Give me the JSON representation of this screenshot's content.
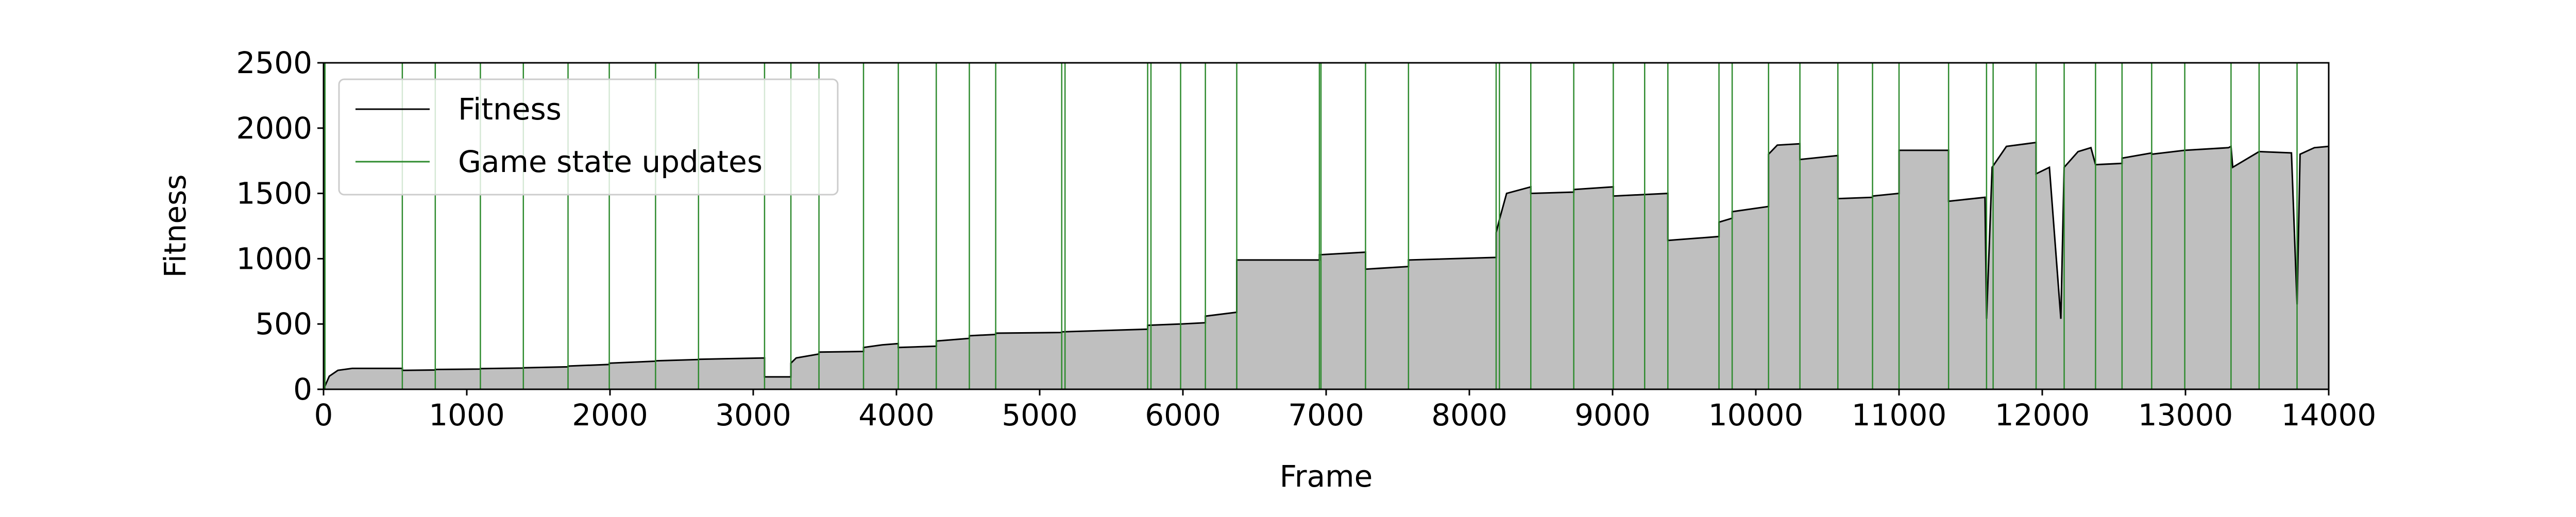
{
  "chart_data": {
    "type": "area",
    "xlabel": "Frame",
    "ylabel": "Fitness",
    "xlim": [
      0,
      14000
    ],
    "xticks": [
      0,
      1000,
      2000,
      3000,
      4000,
      5000,
      6000,
      7000,
      8000,
      9000,
      10000,
      11000,
      12000,
      13000,
      14000
    ],
    "ylim": [
      0,
      2500
    ],
    "yticks": [
      0,
      500,
      1000,
      1500,
      2000,
      2500
    ],
    "legend": "upper left",
    "series": [
      {
        "name": "Fitness",
        "color": "#000000",
        "fill": "#bfbfbf",
        "x": [
          0,
          40,
          100,
          200,
          550,
          550,
          780,
          780,
          1095,
          1095,
          1395,
          1395,
          1707,
          1707,
          1995,
          1995,
          2318,
          2318,
          2618,
          2618,
          3079,
          3079,
          3263,
          3263,
          3300,
          3459,
          3459,
          3770,
          3770,
          3900,
          4013,
          4013,
          4278,
          4278,
          4509,
          4509,
          4693,
          4693,
          5154,
          5154,
          5754,
          5754,
          5984,
          6157,
          6157,
          6376,
          6376,
          6953,
          6953,
          7275,
          7275,
          7575,
          7575,
          8187,
          8187,
          8210,
          8260,
          8429,
          8429,
          8729,
          8729,
          9005,
          9005,
          9386,
          9386,
          9743,
          9743,
          9835,
          9835,
          10089,
          10089,
          10150,
          10308,
          10308,
          10573,
          10573,
          10815,
          10815,
          11000,
          11000,
          11346,
          11346,
          11600,
          11611,
          11650,
          11750,
          11957,
          11957,
          12050,
          12130,
          12153,
          12250,
          12340,
          12372,
          12557,
          12557,
          12764,
          12764,
          12995,
          13300,
          13318,
          13330,
          13514,
          13740,
          13779,
          13800,
          13900,
          14000
        ],
        "values": [
          0,
          100,
          145,
          160,
          160,
          145,
          148,
          152,
          155,
          158,
          163,
          165,
          172,
          178,
          190,
          200,
          215,
          218,
          228,
          230,
          240,
          95,
          95,
          200,
          240,
          270,
          285,
          290,
          320,
          340,
          350,
          320,
          330,
          370,
          390,
          410,
          420,
          430,
          435,
          440,
          460,
          490,
          500,
          510,
          560,
          590,
          990,
          990,
          1030,
          1050,
          920,
          940,
          990,
          1010,
          1200,
          1300,
          1500,
          1550,
          1500,
          1510,
          1530,
          1550,
          1480,
          1500,
          1140,
          1170,
          1280,
          1310,
          1360,
          1400,
          1800,
          1870,
          1880,
          1760,
          1790,
          1460,
          1470,
          1480,
          1500,
          1830,
          1830,
          1440,
          1470,
          540,
          1700,
          1860,
          1890,
          1650,
          1700,
          540,
          1700,
          1820,
          1850,
          1720,
          1730,
          1770,
          1810,
          1800,
          1830,
          1850,
          1860,
          1700,
          1820,
          1810,
          650,
          1800,
          1850,
          1860
        ]
      },
      {
        "name": "Game state updates",
        "color": "#2e8b2e",
        "x": [
          10,
          550,
          780,
          1095,
          1395,
          1707,
          1995,
          2318,
          2618,
          3079,
          3263,
          3459,
          3770,
          4013,
          4278,
          4509,
          4693,
          5154,
          5177,
          5754,
          5777,
          5984,
          6157,
          6376,
          6953,
          6964,
          7275,
          7575,
          8187,
          8210,
          8429,
          8729,
          9005,
          9224,
          9386,
          9743,
          9835,
          10089,
          10308,
          10573,
          10815,
          11000,
          11346,
          11611,
          11657,
          11957,
          12153,
          12372,
          12557,
          12764,
          12995,
          13318,
          13514,
          13779
        ]
      }
    ]
  }
}
